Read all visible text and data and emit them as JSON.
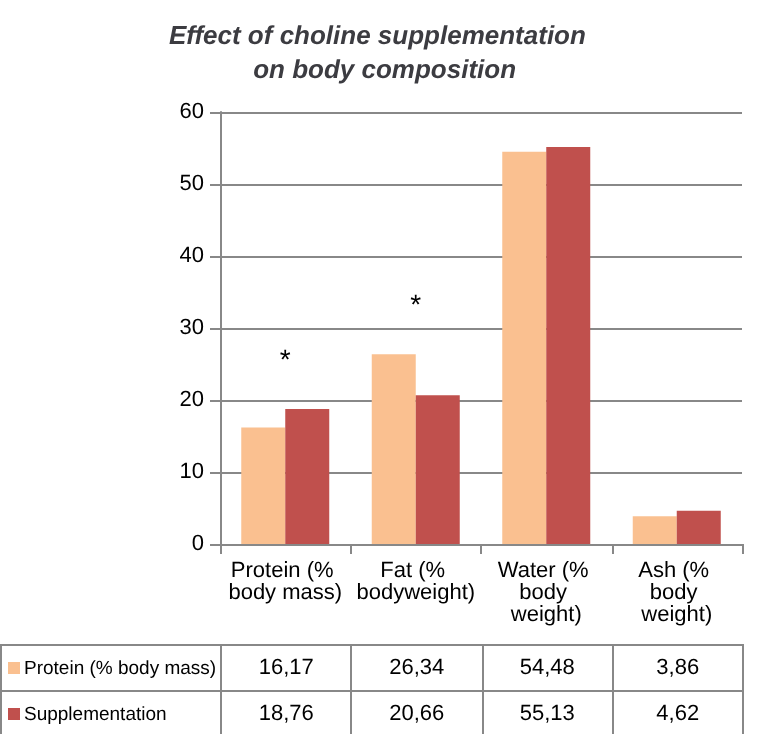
{
  "chart_data": {
    "type": "bar",
    "title": "Effect of choline supplementation  on body composition",
    "categories": [
      "Protein (% body mass)",
      "Fat (% bodyweight)",
      "Water (% body weight)",
      "Ash (% body weight)"
    ],
    "series": [
      {
        "name": "Protein (% body mass)",
        "color": "#fac090",
        "values": [
          16.17,
          26.34,
          54.48,
          3.86
        ],
        "value_labels": [
          "16,17",
          "26,34",
          "54,48",
          "3,86"
        ]
      },
      {
        "name": "Supplementation",
        "color": "#c0504d",
        "values": [
          18.76,
          20.66,
          55.13,
          4.62
        ],
        "value_labels": [
          "18,76",
          "20,66",
          "55,13",
          "4,62"
        ]
      }
    ],
    "annotations": [
      "*",
      "*"
    ],
    "ylim": [
      0,
      60
    ],
    "yticks": [
      0,
      10,
      20,
      30,
      40,
      50,
      60
    ],
    "grid": "y",
    "legend": "bottom left"
  }
}
